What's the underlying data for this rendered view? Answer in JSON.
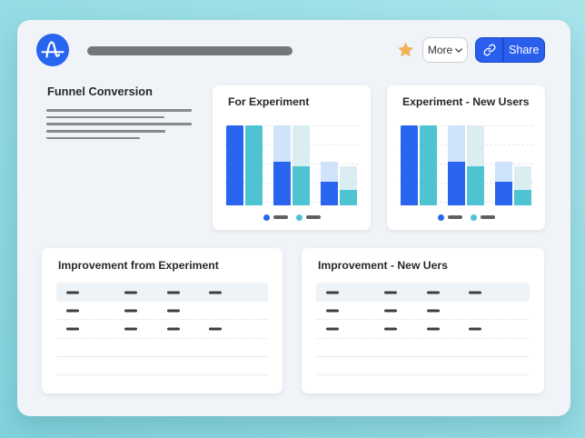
{
  "colors": {
    "page_bg_start": "#82d2dc",
    "page_bg_end": "#a8e4ea",
    "card_bg": "#f0f3f7",
    "panel_bg": "#ffffff",
    "text_dark": "#26292d",
    "accent_blue": "#2a65f0",
    "teal": "#4ec4d3",
    "light_blue": "#cfe3fb",
    "light_teal": "#daeef2",
    "logo_blue": "#2765f1",
    "pill_gray": "#74777a",
    "star_gold": "#f0b355",
    "share_bg": "#2a5fee",
    "share_border": "#1d49c5",
    "more_border": "#cdd1d6",
    "more_text": "#34373b",
    "placeholder_line": "#87898c",
    "dash_dark": "#3c3f42",
    "legend_line": "#5d6064",
    "grid_line": "#e6e9ec",
    "header_band": "#eef3f8",
    "divider_dotted": "#dde1e5",
    "divider_solid": "#e8ebef"
  },
  "topbar": {
    "logo_icon": "amplitude-logo",
    "title_placeholder": "redacted-title-bar",
    "star_icon": "favorite-star",
    "more_label": "More",
    "share_icon": "link",
    "share_label": "Share"
  },
  "funnel_section": {
    "title": "Funnel Conversion",
    "placeholder_line_widths": [
      160,
      130,
      160,
      131,
      103
    ]
  },
  "charts": [
    {
      "title": "For Experiment",
      "type": "funnel-bar",
      "categories": [
        "step-1",
        "step-2",
        "step-3"
      ],
      "series": [
        {
          "name": "series-blue",
          "color": "#2a65f0",
          "light_color": "#cfe3fb",
          "values": [
            1.0,
            0.55,
            0.3
          ]
        },
        {
          "name": "series-teal",
          "color": "#4ec4d3",
          "light_color": "#daeef2",
          "values": [
            1.0,
            0.49,
            0.19
          ]
        }
      ],
      "legend": [
        {
          "name": "series-blue",
          "label_placeholder": true
        },
        {
          "name": "series-teal",
          "label_placeholder": true
        }
      ]
    },
    {
      "title": "Experiment - New Users",
      "type": "funnel-bar",
      "categories": [
        "step-1",
        "step-2",
        "step-3"
      ],
      "series": [
        {
          "name": "series-blue",
          "color": "#2a65f0",
          "light_color": "#cfe3fb",
          "values": [
            1.0,
            0.55,
            0.3
          ]
        },
        {
          "name": "series-teal",
          "color": "#4ec4d3",
          "light_color": "#daeef2",
          "values": [
            1.0,
            0.49,
            0.19
          ]
        }
      ],
      "legend": [
        {
          "name": "series-blue",
          "label_placeholder": true
        },
        {
          "name": "series-teal",
          "label_placeholder": true
        }
      ]
    }
  ],
  "tables": [
    {
      "title": "Improvement from Experiment",
      "header_dashes": 4,
      "rows": [
        {
          "dashes": 3,
          "divider": "dotted"
        },
        {
          "dashes": 4,
          "divider": "dotted"
        },
        {
          "dashes": 0,
          "divider": "solid"
        },
        {
          "dashes": 0,
          "divider": "solid"
        }
      ]
    },
    {
      "title": "Improvement - New Uers",
      "header_dashes": 4,
      "rows": [
        {
          "dashes": 3,
          "divider": "dotted"
        },
        {
          "dashes": 4,
          "divider": "dotted"
        },
        {
          "dashes": 0,
          "divider": "solid"
        },
        {
          "dashes": 0,
          "divider": "solid"
        }
      ]
    }
  ]
}
